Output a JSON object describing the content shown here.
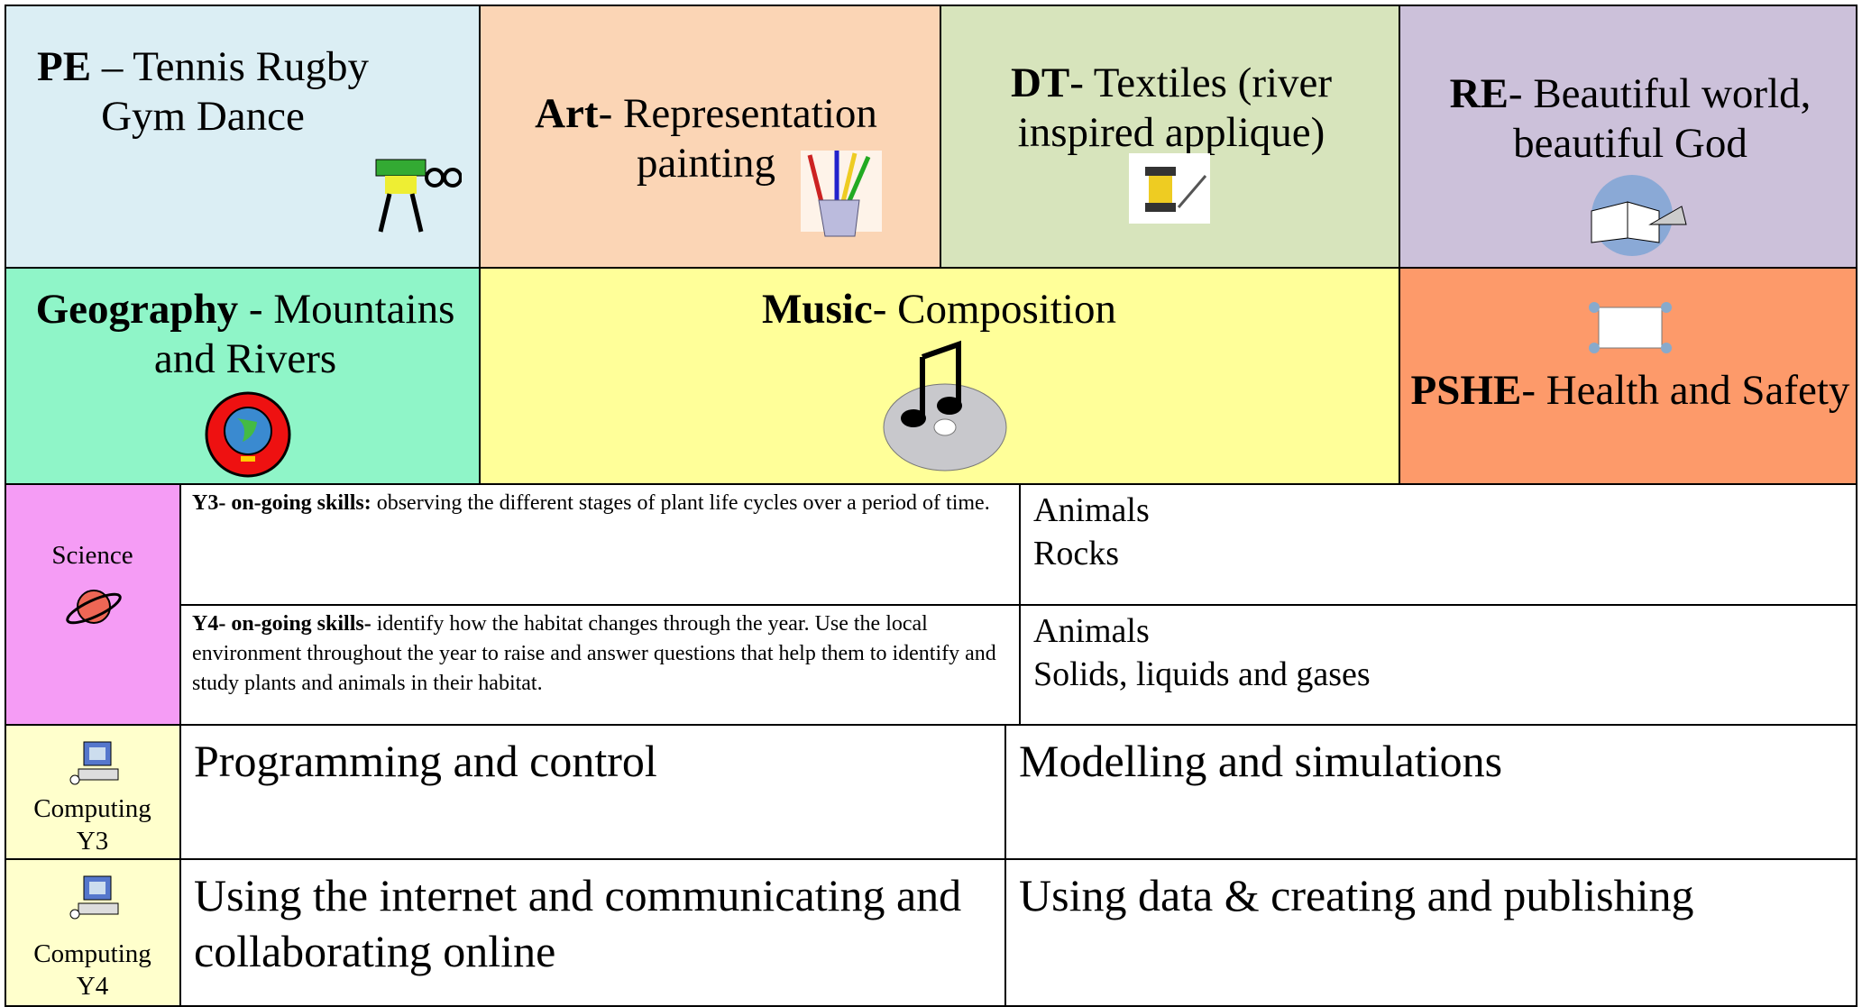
{
  "row1": [
    {
      "subject": "PE",
      "text": "– Tennis Rugby Gym Dance"
    },
    {
      "subject": "Art",
      "text": "- Representation painting"
    },
    {
      "subject": "DT",
      "text": "- Textiles (river inspired applique)"
    },
    {
      "subject": "RE",
      "text": "- Beautiful world, beautiful God"
    }
  ],
  "row2": [
    {
      "subject": "Geography",
      "text": "- Mountains and Rivers"
    },
    {
      "subject": "Music",
      "text": "- Composition"
    },
    {
      "subject": "PSHE",
      "text": "- Health and Safety"
    }
  ],
  "science": {
    "label": "Science",
    "y3": {
      "heading": "Y3- on-going skills:",
      "text": "observing the different stages of plant life cycles over a period of time.",
      "topics": [
        "Animals",
        "Rocks"
      ]
    },
    "y4": {
      "heading": "Y4- on-going skills-",
      "text": "identify how the habitat changes through the year. Use the local environment throughout the year to raise and answer questions that help them to identify and study plants and animals in their habitat.",
      "topics": [
        "Animals",
        "Solids, liquids and gases"
      ]
    }
  },
  "computing": [
    {
      "label": "Computing",
      "year": "Y3",
      "topics": [
        "Programming and control",
        "Modelling and simulations"
      ]
    },
    {
      "label": "Computing",
      "year": "Y4",
      "topics": [
        "Using the internet and communicating and collaborating online",
        "Using data & creating and publishing"
      ]
    }
  ]
}
